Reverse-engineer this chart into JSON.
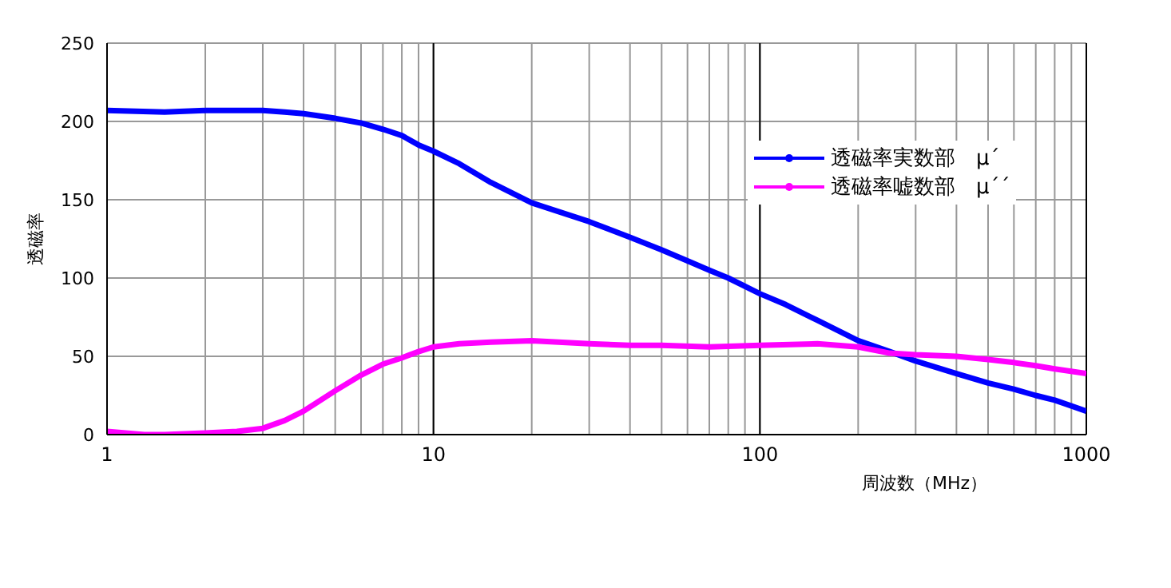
{
  "chart_data": {
    "type": "line",
    "xlabel": "周波数（MHz）",
    "ylabel": "透磁率",
    "log": "x",
    "grid": true,
    "legend": "top right",
    "marker": "none",
    "line_style": "solid",
    "xlim": [
      1,
      1000
    ],
    "ylim": [
      0,
      250
    ],
    "yticks": [
      0,
      50,
      100,
      150,
      200,
      250
    ],
    "xticks": [
      1,
      {
        "value": 2,
        "label": null
      },
      {
        "value": 3,
        "label": null
      },
      {
        "value": 4,
        "label": null
      },
      {
        "value": 5,
        "label": null
      },
      {
        "value": 6,
        "label": null
      },
      {
        "value": 7,
        "label": null
      },
      {
        "value": 8,
        "label": null
      },
      {
        "value": 9,
        "label": null
      },
      10,
      {
        "value": 20,
        "label": null
      },
      {
        "value": 30,
        "label": null
      },
      {
        "value": 40,
        "label": null
      },
      {
        "value": 50,
        "label": null
      },
      {
        "value": 60,
        "label": null
      },
      {
        "value": 70,
        "label": null
      },
      {
        "value": 80,
        "label": null
      },
      {
        "value": 90,
        "label": null
      },
      100,
      {
        "value": 200,
        "label": null
      },
      {
        "value": 300,
        "label": null
      },
      {
        "value": 400,
        "label": null
      },
      {
        "value": 500,
        "label": null
      },
      {
        "value": 600,
        "label": null
      },
      {
        "value": 700,
        "label": null
      },
      {
        "value": 800,
        "label": null
      },
      {
        "value": 900,
        "label": null
      },
      1000
    ],
    "series": [
      {
        "name": "透磁率実数部　μ´",
        "color": "#0000ff",
        "x": [
          1,
          1.5,
          2,
          3,
          3.5,
          4,
          5,
          6,
          7,
          8,
          9,
          10,
          12,
          15,
          20,
          30,
          40,
          50,
          60,
          70,
          80,
          100,
          120,
          150,
          200,
          250,
          300,
          400,
          500,
          600,
          700,
          800,
          1000
        ],
        "values": [
          207,
          206,
          207,
          207,
          206,
          205,
          202,
          199,
          195,
          191,
          185,
          181,
          173,
          161,
          148,
          136,
          126,
          118,
          111,
          105,
          100,
          90,
          83,
          73,
          60,
          53,
          47,
          39,
          33,
          29,
          25,
          22,
          15
        ]
      },
      {
        "name": "透磁率嘘数部　μ´´",
        "color": "#ff00ff",
        "x": [
          1,
          1.3,
          1.5,
          2,
          2.5,
          3,
          3.5,
          4,
          5,
          6,
          7,
          8,
          9,
          10,
          12,
          15,
          20,
          30,
          40,
          50,
          70,
          100,
          150,
          200,
          250,
          300,
          400,
          500,
          600,
          700,
          800,
          1000
        ],
        "values": [
          2,
          0,
          0,
          1,
          2,
          4,
          9,
          15,
          28,
          38,
          45,
          49,
          53,
          56,
          58,
          59,
          60,
          58,
          57,
          57,
          56,
          57,
          58,
          56,
          52,
          51,
          50,
          48,
          46,
          44,
          42,
          39
        ]
      }
    ]
  }
}
